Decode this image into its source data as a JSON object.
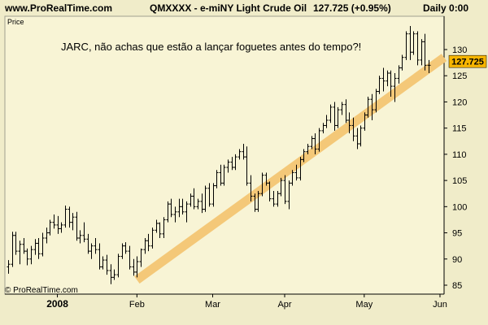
{
  "header": {
    "site": "www.ProRealTime.com",
    "symbol_title": "QMXXXX - e-miNY Light Crude Oil",
    "quote": "127.725 (+0.95%)",
    "period": "Daily 0:00"
  },
  "footer": {
    "copyright": "© ProRealTime.com"
  },
  "chart_data": {
    "type": "ohlc-bar",
    "panel_label": "Price",
    "annotation": "JARC, não achas que estão a lançar foguetes antes do tempo?!",
    "last_price_label": "127.725",
    "last_price": 127.725,
    "ylim": [
      84,
      135
    ],
    "y_ticks": [
      85,
      90,
      95,
      100,
      105,
      110,
      115,
      120,
      125,
      130
    ],
    "x_ticks": [
      {
        "label": "2008",
        "bar": 13,
        "bold": true
      },
      {
        "label": "Feb",
        "bar": 34
      },
      {
        "label": "Mar",
        "bar": 54
      },
      {
        "label": "Apr",
        "bar": 73
      },
      {
        "label": "May",
        "bar": 94
      },
      {
        "label": "Jun",
        "bar": 114
      }
    ],
    "bars": [
      [
        88.5,
        89.8,
        87.2,
        89.0
      ],
      [
        89.0,
        95.2,
        88.5,
        94.5
      ],
      [
        94.5,
        95.2,
        90.8,
        91.5
      ],
      [
        91.5,
        93.5,
        89.0,
        92.8
      ],
      [
        92.8,
        94.0,
        91.0,
        91.5
      ],
      [
        91.5,
        92.0,
        88.8,
        90.0
      ],
      [
        90.0,
        92.5,
        89.0,
        91.8
      ],
      [
        91.8,
        93.8,
        90.8,
        93.0
      ],
      [
        93.0,
        94.0,
        90.0,
        91.0
      ],
      [
        91.0,
        95.0,
        90.5,
        94.0
      ],
      [
        94.0,
        96.0,
        93.0,
        95.0
      ],
      [
        95.0,
        97.5,
        94.5,
        97.0
      ],
      [
        97.0,
        98.5,
        95.8,
        96.5
      ],
      [
        96.5,
        98.2,
        94.8,
        95.8
      ],
      [
        95.8,
        97.0,
        95.0,
        96.5
      ],
      [
        96.5,
        100.2,
        96.0,
        99.5
      ],
      [
        99.5,
        100.0,
        96.0,
        97.0
      ],
      [
        97.0,
        98.8,
        95.5,
        98.0
      ],
      [
        98.0,
        99.0,
        93.5,
        94.0
      ],
      [
        94.0,
        95.5,
        93.0,
        94.5
      ],
      [
        94.5,
        97.0,
        93.2,
        93.8
      ],
      [
        93.8,
        94.8,
        91.0,
        91.5
      ],
      [
        91.5,
        93.0,
        90.0,
        92.5
      ],
      [
        92.5,
        94.0,
        91.0,
        91.8
      ],
      [
        91.8,
        93.0,
        88.0,
        88.5
      ],
      [
        88.5,
        90.5,
        88.0,
        89.8
      ],
      [
        89.8,
        90.8,
        87.0,
        87.8
      ],
      [
        87.8,
        89.0,
        85.2,
        86.5
      ],
      [
        86.5,
        88.0,
        86.0,
        87.0
      ],
      [
        87.0,
        91.0,
        86.5,
        90.5
      ],
      [
        90.5,
        93.0,
        90.0,
        92.5
      ],
      [
        92.5,
        93.2,
        91.0,
        91.5
      ],
      [
        91.5,
        92.5,
        88.0,
        88.5
      ],
      [
        88.5,
        90.0,
        86.8,
        87.5
      ],
      [
        87.5,
        90.5,
        86.5,
        89.5
      ],
      [
        89.5,
        92.0,
        88.5,
        91.8
      ],
      [
        91.8,
        94.0,
        91.0,
        93.5
      ],
      [
        93.5,
        94.8,
        91.5,
        92.5
      ],
      [
        92.5,
        96.0,
        92.0,
        95.5
      ],
      [
        95.5,
        97.5,
        95.0,
        96.8
      ],
      [
        96.8,
        97.0,
        94.0,
        94.8
      ],
      [
        94.8,
        98.0,
        94.0,
        97.5
      ],
      [
        97.5,
        101.0,
        97.0,
        100.5
      ],
      [
        100.5,
        101.5,
        98.0,
        98.5
      ],
      [
        98.5,
        100.0,
        97.0,
        99.0
      ],
      [
        99.0,
        101.5,
        98.0,
        100.0
      ],
      [
        100.0,
        101.5,
        98.5,
        99.0
      ],
      [
        99.0,
        101.0,
        97.0,
        100.5
      ],
      [
        100.5,
        102.5,
        100.0,
        102.0
      ],
      [
        102.0,
        103.5,
        99.5,
        100.0
      ],
      [
        100.0,
        101.5,
        99.5,
        101.0
      ],
      [
        101.0,
        102.5,
        98.8,
        99.5
      ],
      [
        99.5,
        104.0,
        99.0,
        103.5
      ],
      [
        103.5,
        104.5,
        100.0,
        100.5
      ],
      [
        100.5,
        104.5,
        100.0,
        104.0
      ],
      [
        104.0,
        107.0,
        103.5,
        106.5
      ],
      [
        106.5,
        108.0,
        104.0,
        104.5
      ],
      [
        104.5,
        108.0,
        104.0,
        107.5
      ],
      [
        107.5,
        109.0,
        106.5,
        108.5
      ],
      [
        108.5,
        109.5,
        107.0,
        107.5
      ],
      [
        107.5,
        110.0,
        107.0,
        109.5
      ],
      [
        109.5,
        111.0,
        109.0,
        110.5
      ],
      [
        110.5,
        112.0,
        109.0,
        109.5
      ],
      [
        109.5,
        111.5,
        104.0,
        104.5
      ],
      [
        104.5,
        106.0,
        101.0,
        102.0
      ],
      [
        102.0,
        102.5,
        99.0,
        99.5
      ],
      [
        99.5,
        103.0,
        99.0,
        102.5
      ],
      [
        102.5,
        106.5,
        102.0,
        106.0
      ],
      [
        106.0,
        106.5,
        104.0,
        104.5
      ],
      [
        104.5,
        104.8,
        101.0,
        101.5
      ],
      [
        101.5,
        103.0,
        100.0,
        100.5
      ],
      [
        100.5,
        103.0,
        100.0,
        102.5
      ],
      [
        102.5,
        105.5,
        102.0,
        105.0
      ],
      [
        105.0,
        106.0,
        100.5,
        101.0
      ],
      [
        101.0,
        105.0,
        99.5,
        104.5
      ],
      [
        104.5,
        107.0,
        104.0,
        106.5
      ],
      [
        106.5,
        108.0,
        105.0,
        105.5
      ],
      [
        105.5,
        109.5,
        105.0,
        109.0
      ],
      [
        109.0,
        111.0,
        108.5,
        110.5
      ],
      [
        110.5,
        112.0,
        110.0,
        111.5
      ],
      [
        111.5,
        113.5,
        111.0,
        113.0
      ],
      [
        113.0,
        114.0,
        110.0,
        111.0
      ],
      [
        111.0,
        115.0,
        110.5,
        114.5
      ],
      [
        114.5,
        116.0,
        114.0,
        115.5
      ],
      [
        115.5,
        117.5,
        115.0,
        116.5
      ],
      [
        116.5,
        119.5,
        116.0,
        119.0
      ],
      [
        119.0,
        120.0,
        114.5,
        115.5
      ],
      [
        115.5,
        119.0,
        115.0,
        118.5
      ],
      [
        118.5,
        120.0,
        117.5,
        119.5
      ],
      [
        119.5,
        120.5,
        116.0,
        116.5
      ],
      [
        116.5,
        118.0,
        114.0,
        115.5
      ],
      [
        115.5,
        117.0,
        112.5,
        113.5
      ],
      [
        113.5,
        115.0,
        111.0,
        112.0
      ],
      [
        112.0,
        115.5,
        111.5,
        115.0
      ],
      [
        115.0,
        118.0,
        114.5,
        117.5
      ],
      [
        117.5,
        121.0,
        117.0,
        120.5
      ],
      [
        120.5,
        121.5,
        116.5,
        118.5
      ],
      [
        118.5,
        122.5,
        118.0,
        122.0
      ],
      [
        122.0,
        125.0,
        121.5,
        124.5
      ],
      [
        124.5,
        126.5,
        122.0,
        124.0
      ],
      [
        124.0,
        126.0,
        123.0,
        125.5
      ],
      [
        125.5,
        126.0,
        121.0,
        123.0
      ],
      [
        123.0,
        125.5,
        120.0,
        124.5
      ],
      [
        124.5,
        127.0,
        123.5,
        126.5
      ],
      [
        126.5,
        129.0,
        126.0,
        128.5
      ],
      [
        128.5,
        133.5,
        128.0,
        133.0
      ],
      [
        133.0,
        134.5,
        128.0,
        129.5
      ],
      [
        129.5,
        133.5,
        129.0,
        133.0
      ],
      [
        133.0,
        133.5,
        127.0,
        128.0
      ],
      [
        128.0,
        132.0,
        127.0,
        131.5
      ],
      [
        131.5,
        133.0,
        126.0,
        127.0
      ],
      [
        127.0,
        128.0,
        125.5,
        127.0
      ]
    ],
    "trend_line": {
      "from": {
        "bar": 34,
        "price": 86
      },
      "to": {
        "bar": 118,
        "price": 128.5
      }
    }
  }
}
